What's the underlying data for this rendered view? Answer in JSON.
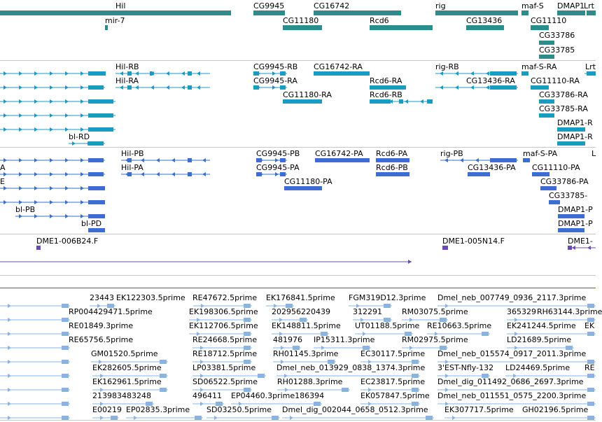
{
  "tracks": {
    "genes": {
      "color": "#2e8b8b",
      "labels": [
        "Hil",
        "CG9945",
        "CG16742",
        "rig",
        "maf-S",
        "DMAP1",
        "Lrt",
        "mir-7",
        "CG11180",
        "Rcd6",
        "CG13436",
        "CG11110",
        "CG33786",
        "CG33785"
      ]
    },
    "transcripts": {
      "color": "#199bc2",
      "labels": [
        "Hil-RB",
        "CG9945-RB",
        "CG16742-RA",
        "rig-RB",
        "maf-S-RA",
        "Lrt",
        "Hil-RA",
        "CG9945-RA",
        "Rcd6-RA",
        "CG13436-RA",
        "CG11110-RA",
        "CG11180-RA",
        "Rcd6-RB",
        "CG33786-RA",
        "CG33785-RA",
        "DMAP1-R",
        "DMAP1-R",
        "bl-RD"
      ]
    },
    "proteins": {
      "color": "#3a6ed0",
      "labels": [
        "Hil-PB",
        "CG9945-PB",
        "CG16742-PA",
        "Rcd6-PA",
        "rig-PB",
        "maf-S-PA",
        "L",
        "A",
        "Hil-PA",
        "CG9945-PA",
        "Rcd6-PB",
        "CG13436-PA",
        "CG11110-PA",
        "E",
        "CG11180-PA",
        "CG33786-PA",
        "CG33785-",
        "bl-PB",
        "DMAP1-P",
        "bl-PD",
        "DMAP1-P"
      ]
    },
    "clones": {
      "color": "#6a4cb0",
      "labels": [
        "DME1-006B24.F",
        "DME1-005N14.F",
        "DME1-"
      ]
    },
    "ests": {
      "color": "#8ab4e0",
      "rows": [
        [
          "23443",
          "EK122303.5prime",
          "RE47672.5prime",
          "EK176841.5prime",
          "FGM319D12.3prime",
          "Dmel_neb_007749_0936_2117.3prime"
        ],
        [
          "RP004429471.5prime",
          "EK198306.5prime",
          "202956220439",
          "312291",
          "RM03075.5prime",
          "365329",
          "RH63144.3prime"
        ],
        [
          "RE01849.3prime",
          "EK112706.5prime",
          "EK148811.5prime",
          "UT01188.5prime",
          "RE10663.5prime",
          "EK241244.5prime",
          "EK"
        ],
        [
          "RE65756.5prime",
          "RE24668.5prime",
          "481976",
          "IP15311.3prime",
          "RM02975.5prime",
          "LD21689.5prime"
        ],
        [
          "GM01520.5prime",
          "RE18712.5prime",
          "RH01145.3prime",
          "EC30117.5prime",
          "Dmel_neb_015574_0917_2011.3prime"
        ],
        [
          "EK282605.5prime",
          "LP03381.5prime",
          "Dmel_neb_013929_0838_1374.3prime",
          "3'EST-Nfly-132",
          "LD24469.5prime",
          "RE"
        ],
        [
          "EK162961.5prime",
          "SD06522.5prime",
          "RH01288.3prime",
          "EC23817.5prime",
          "Dmel_dig_011492_0686_2697.3prime"
        ],
        [
          "213983483248",
          "496411",
          "EP04460.3prime186394",
          "EK057847.5prime",
          "Dmel_neb_011551_0575_2200.3prime"
        ],
        [
          "E00219",
          "EP02835.3prime",
          "SD03250.5prime",
          "Dmel_dig_002044_0658_0512.3prime",
          "EK307717.5prime",
          "GH02196.5prime"
        ]
      ]
    }
  }
}
